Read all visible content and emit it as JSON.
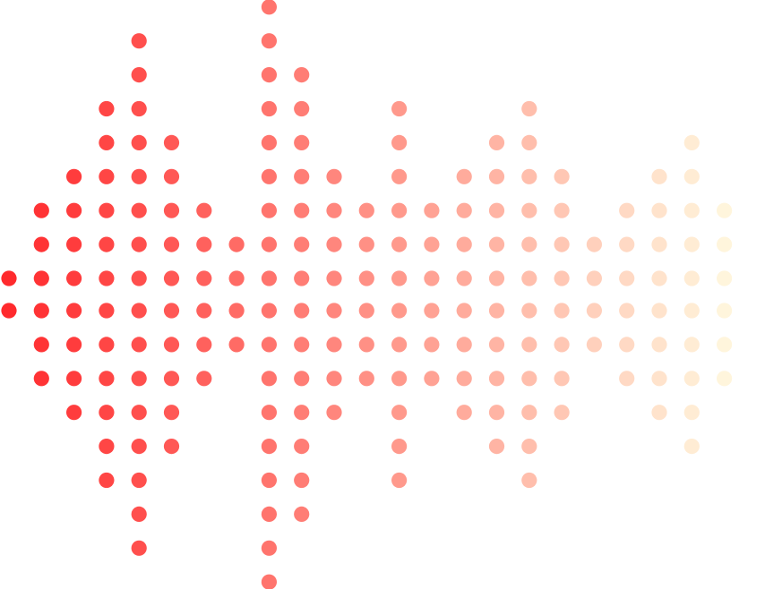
{
  "graphic": {
    "icon": "audio-waveform-dot-matrix-icon",
    "gradient": {
      "start_color": "#ff2a2d",
      "end_color": "#fff5dc"
    },
    "columns": [
      {
        "half_height": 1
      },
      {
        "half_height": 3
      },
      {
        "half_height": 4
      },
      {
        "half_height": 6
      },
      {
        "half_height": 8
      },
      {
        "half_height": 5
      },
      {
        "half_height": 3
      },
      {
        "half_height": 2
      },
      {
        "half_height": 9
      },
      {
        "half_height": 7
      },
      {
        "half_height": 4
      },
      {
        "half_height": 3
      },
      {
        "half_height": 6
      },
      {
        "half_height": 3
      },
      {
        "half_height": 4
      },
      {
        "half_height": 5
      },
      {
        "half_height": 6
      },
      {
        "half_height": 4
      },
      {
        "half_height": 2
      },
      {
        "half_height": 3
      },
      {
        "half_height": 4
      },
      {
        "half_height": 5
      },
      {
        "half_height": 3
      }
    ]
  }
}
